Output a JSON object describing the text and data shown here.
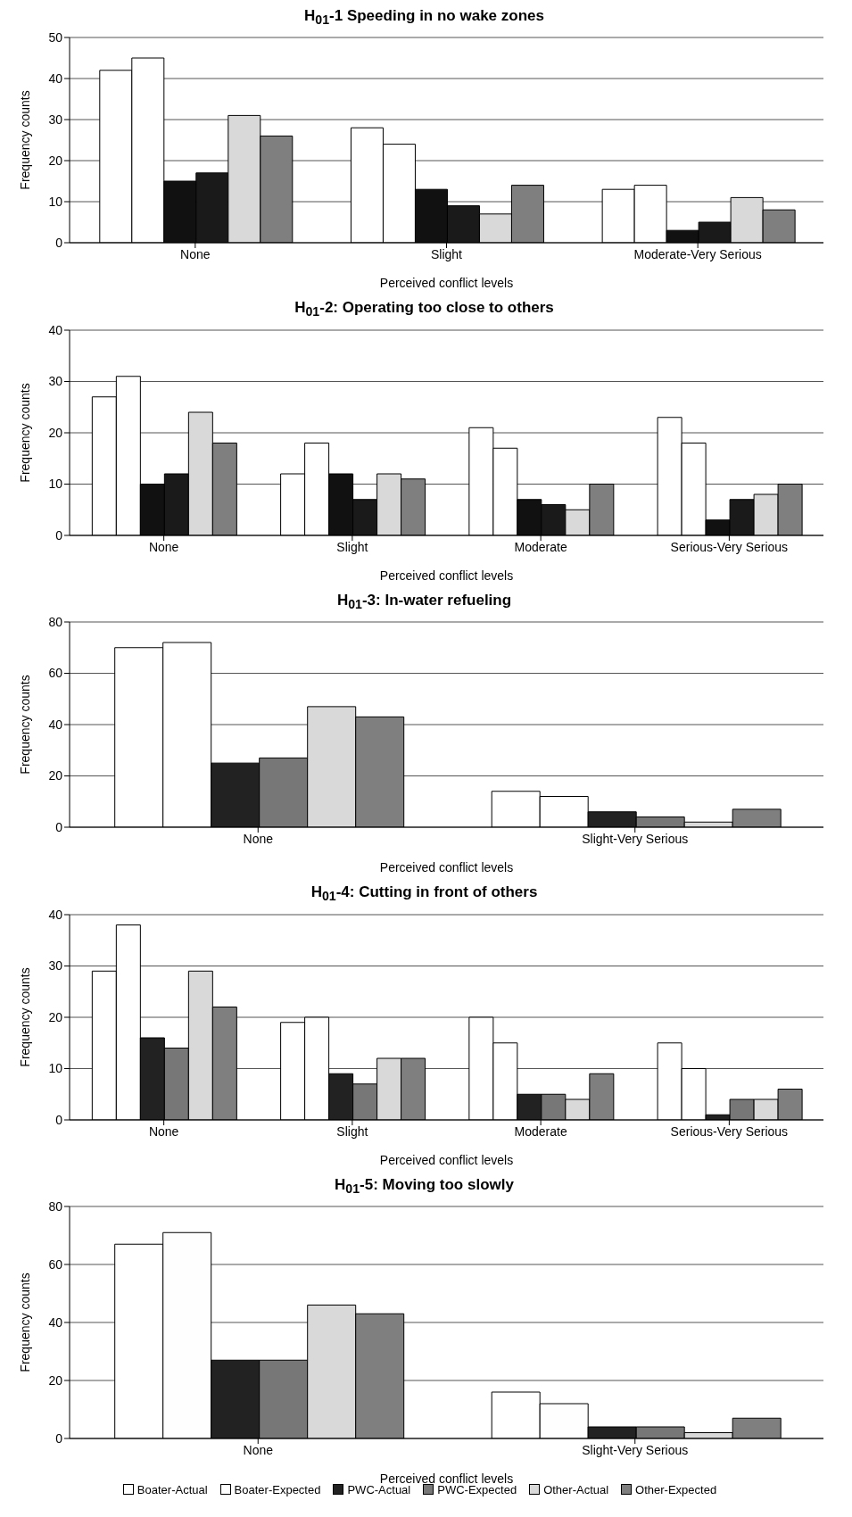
{
  "chart_data": [
    {
      "type": "bar",
      "title": "H$_{01}$-1 Speeding in no wake zones",
      "xlabel": "Perceived conflict levels",
      "ylabel": "Frequency counts",
      "categories": [
        "None",
        "Slight",
        "Moderate-Very Serious"
      ],
      "ylim": [
        0,
        50
      ],
      "yticks": [
        0,
        10,
        20,
        30,
        40,
        50
      ],
      "grid": "y",
      "legend": false,
      "series": [
        {
          "color": "#ffffff",
          "values": [
            42,
            28,
            13
          ]
        },
        {
          "color": "#ffffff",
          "values": [
            45,
            24,
            14
          ]
        },
        {
          "color": "#111111",
          "values": [
            15,
            13,
            3
          ]
        },
        {
          "color": "#1a1a1a",
          "values": [
            17,
            9,
            5
          ]
        },
        {
          "color": "#d9d9d9",
          "values": [
            31,
            7,
            11
          ]
        },
        {
          "color": "#7f7f7f",
          "values": [
            26,
            14,
            8
          ]
        }
      ]
    },
    {
      "type": "bar",
      "title": "H$_{01}$-2: Operating too close to others",
      "xlabel": "Perceived conflict levels",
      "ylabel": "Frequency counts",
      "categories": [
        "None",
        "Slight",
        "Moderate",
        "Serious-Very Serious"
      ],
      "ylim": [
        0,
        40
      ],
      "yticks": [
        0,
        10,
        20,
        30,
        40
      ],
      "grid": "y",
      "legend": false,
      "series": [
        {
          "color": "#ffffff",
          "values": [
            27,
            12,
            21,
            23
          ]
        },
        {
          "color": "#ffffff",
          "values": [
            31,
            18,
            17,
            18
          ]
        },
        {
          "color": "#111111",
          "values": [
            10,
            12,
            7,
            3
          ]
        },
        {
          "color": "#1a1a1a",
          "values": [
            12,
            7,
            6,
            7
          ]
        },
        {
          "color": "#d9d9d9",
          "values": [
            24,
            12,
            5,
            8
          ]
        },
        {
          "color": "#7f7f7f",
          "values": [
            18,
            11,
            10,
            10
          ]
        }
      ]
    },
    {
      "type": "bar",
      "title": "H$_{01}$-3: In-water refueling",
      "xlabel": "Perceived conflict levels",
      "ylabel": "Frequency counts",
      "categories": [
        "None",
        "Slight-Very Serious"
      ],
      "ylim": [
        0,
        80
      ],
      "yticks": [
        0,
        20,
        40,
        60,
        80
      ],
      "grid": "y",
      "legend": false,
      "series": [
        {
          "color": "#ffffff",
          "values": [
            70,
            14
          ]
        },
        {
          "color": "#ffffff",
          "values": [
            72,
            12
          ]
        },
        {
          "color": "#222222",
          "values": [
            25,
            6
          ]
        },
        {
          "color": "#777777",
          "values": [
            27,
            4
          ]
        },
        {
          "color": "#d9d9d9",
          "values": [
            47,
            2
          ]
        },
        {
          "color": "#7f7f7f",
          "values": [
            43,
            7
          ]
        }
      ]
    },
    {
      "type": "bar",
      "title": "H$_{01}$-4: Cutting in front of others",
      "xlabel": "Perceived conflict levels",
      "ylabel": "Frequency counts",
      "categories": [
        "None",
        "Slight",
        "Moderate",
        "Serious-Very Serious"
      ],
      "ylim": [
        0,
        40
      ],
      "yticks": [
        0,
        10,
        20,
        30,
        40
      ],
      "grid": "y",
      "legend": false,
      "series": [
        {
          "color": "#ffffff",
          "values": [
            29,
            19,
            20,
            15
          ]
        },
        {
          "color": "#ffffff",
          "values": [
            38,
            20,
            15,
            10
          ]
        },
        {
          "color": "#222222",
          "values": [
            16,
            9,
            5,
            1
          ]
        },
        {
          "color": "#777777",
          "values": [
            14,
            7,
            5,
            4
          ]
        },
        {
          "color": "#d9d9d9",
          "values": [
            29,
            12,
            4,
            4
          ]
        },
        {
          "color": "#7f7f7f",
          "values": [
            22,
            12,
            9,
            6
          ]
        }
      ]
    },
    {
      "type": "bar",
      "title": "H$_{01}$-5: Moving too slowly",
      "xlabel": "Perceived conflict levels",
      "ylabel": "Frequency counts",
      "categories": [
        "None",
        "Slight-Very Serious"
      ],
      "ylim": [
        0,
        80
      ],
      "yticks": [
        0,
        20,
        40,
        60,
        80
      ],
      "grid": "y",
      "legend": "bottom",
      "series": [
        {
          "name": "Boater-Actual",
          "color": "#ffffff",
          "values": [
            67,
            16
          ]
        },
        {
          "name": "Boater-Expected",
          "color": "#fefefe",
          "values": [
            71,
            12
          ]
        },
        {
          "name": "PWC-Actual",
          "color": "#222222",
          "values": [
            27,
            4
          ]
        },
        {
          "name": "PWC-Expected",
          "color": "#777777",
          "values": [
            27,
            4
          ]
        },
        {
          "name": "Other-Actual",
          "color": "#d9d9d9",
          "values": [
            46,
            2
          ]
        },
        {
          "name": "Other-Expected",
          "color": "#7f7f7f",
          "values": [
            43,
            7
          ]
        }
      ]
    }
  ]
}
